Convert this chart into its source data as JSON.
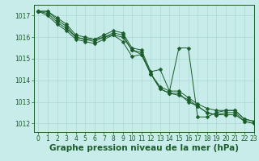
{
  "x": [
    0,
    1,
    2,
    3,
    4,
    5,
    6,
    7,
    8,
    9,
    10,
    11,
    12,
    13,
    14,
    15,
    16,
    17,
    18,
    19,
    20,
    21,
    22,
    23
  ],
  "line1": [
    1017.2,
    1017.2,
    1016.9,
    1016.6,
    1016.1,
    1016.0,
    1015.9,
    1016.1,
    1016.3,
    1016.2,
    1015.5,
    1015.4,
    1014.4,
    1014.5,
    1013.5,
    1013.5,
    1013.2,
    1012.9,
    1012.7,
    1012.6,
    1012.6,
    1012.6,
    1012.2,
    1012.1
  ],
  "line2": [
    1017.2,
    1017.2,
    1016.8,
    1016.5,
    1016.0,
    1015.9,
    1015.8,
    1016.0,
    1016.1,
    1015.8,
    1015.1,
    1015.2,
    1014.3,
    1013.7,
    1013.5,
    1015.5,
    1015.5,
    1012.3,
    1012.3,
    1012.5,
    1012.6,
    1012.6,
    1012.2,
    1012.1
  ],
  "line3": [
    1017.2,
    1017.0,
    1016.6,
    1016.3,
    1015.9,
    1015.8,
    1015.7,
    1015.9,
    1016.1,
    1016.0,
    1015.4,
    1015.2,
    1014.3,
    1013.6,
    1013.4,
    1013.4,
    1013.0,
    1012.8,
    1012.5,
    1012.4,
    1012.4,
    1012.4,
    1012.1,
    1012.0
  ],
  "line4": [
    1017.2,
    1017.1,
    1016.7,
    1016.4,
    1016.0,
    1015.9,
    1015.9,
    1016.0,
    1016.2,
    1016.1,
    1015.4,
    1015.3,
    1014.3,
    1013.6,
    1013.4,
    1013.3,
    1013.1,
    1012.8,
    1012.5,
    1012.4,
    1012.5,
    1012.5,
    1012.1,
    1012.0
  ],
  "bg_color": "#c8ecea",
  "grid_color": "#aad8d3",
  "line_color": "#1a5c2a",
  "marker_size": 2.5,
  "xlabel": "Graphe pression niveau de la mer (hPa)",
  "xlim": [
    -0.5,
    23
  ],
  "ylim": [
    1011.6,
    1017.5
  ],
  "yticks": [
    1012,
    1013,
    1014,
    1015,
    1016,
    1017
  ],
  "xticks": [
    0,
    1,
    2,
    3,
    4,
    5,
    6,
    7,
    8,
    9,
    10,
    11,
    12,
    13,
    14,
    15,
    16,
    17,
    18,
    19,
    20,
    21,
    22,
    23
  ],
  "tick_fontsize": 5.5,
  "xlabel_fontsize": 7.5
}
